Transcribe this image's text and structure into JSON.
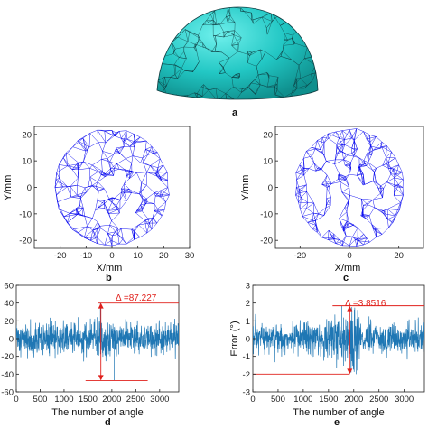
{
  "figure": {
    "panel_a": {
      "label": "a",
      "fill_color": "#22c7c4",
      "edge_color": "#0f3c40"
    },
    "panel_b": {
      "label": "b",
      "xlabel": "X/mm",
      "ylabel": "Y/mm",
      "mesh_color": "#0000ee"
    },
    "panel_c": {
      "label": "c",
      "xlabel": "X/mm",
      "ylabel": "Y/mm",
      "mesh_color": "#0000ee"
    },
    "panel_d": {
      "label": "d",
      "xlabel": "The number of angle",
      "annotation": "Δ =87.227",
      "signal_color": "#1f77b4",
      "annotation_color": "#e0201b"
    },
    "panel_e": {
      "label": "e",
      "xlabel": "The number of angle",
      "ylabel": "Error (°)",
      "annotation": "Δ =3.8516",
      "signal_color": "#1f77b4",
      "annotation_color": "#e0201b"
    }
  },
  "chart_data": [
    {
      "type": "mesh",
      "panel": "b",
      "xlabel": "X/mm",
      "ylabel": "Y/mm",
      "xlim": [
        -30,
        30
      ],
      "ylim": [
        -23,
        23
      ],
      "xticks": [
        -20,
        -10,
        0,
        10,
        20,
        30
      ],
      "yticks": [
        20,
        10,
        0,
        -10,
        -20
      ],
      "shape": "disk",
      "radius_mm": 22
    },
    {
      "type": "mesh",
      "panel": "c",
      "xlabel": "X/mm",
      "ylabel": "Y/mm",
      "xlim": [
        -30,
        30
      ],
      "ylim": [
        -23,
        23
      ],
      "xticks": [
        -20,
        0,
        20
      ],
      "yticks": [
        20,
        10,
        0,
        -10,
        -20
      ],
      "shape": "disk",
      "radius_mm": 22
    },
    {
      "type": "line",
      "panel": "d",
      "xlabel": "The number of angle",
      "xlim": [
        0,
        3400
      ],
      "ylim": [
        -60,
        60
      ],
      "xticks": [
        0,
        500,
        1000,
        1500,
        2000,
        2500,
        3000
      ],
      "yticks": [
        60,
        40,
        20,
        0,
        -20,
        -40,
        -60
      ],
      "n_points": 3400,
      "max": 40,
      "min": -47.2,
      "peak_to_peak": 87.227,
      "annotation": "Δ =87.227"
    },
    {
      "type": "line",
      "panel": "e",
      "xlabel": "The number of angle",
      "ylabel": "Error (°)",
      "xlim": [
        0,
        3400
      ],
      "ylim": [
        -3,
        3
      ],
      "xticks": [
        0,
        500,
        1000,
        1500,
        2000,
        2500,
        3000
      ],
      "yticks": [
        3,
        2,
        1,
        0,
        -1,
        -2,
        -3
      ],
      "n_points": 3400,
      "max": 1.85,
      "min": -2.0,
      "peak_to_peak": 3.8516,
      "annotation": "Δ =3.8516"
    }
  ]
}
